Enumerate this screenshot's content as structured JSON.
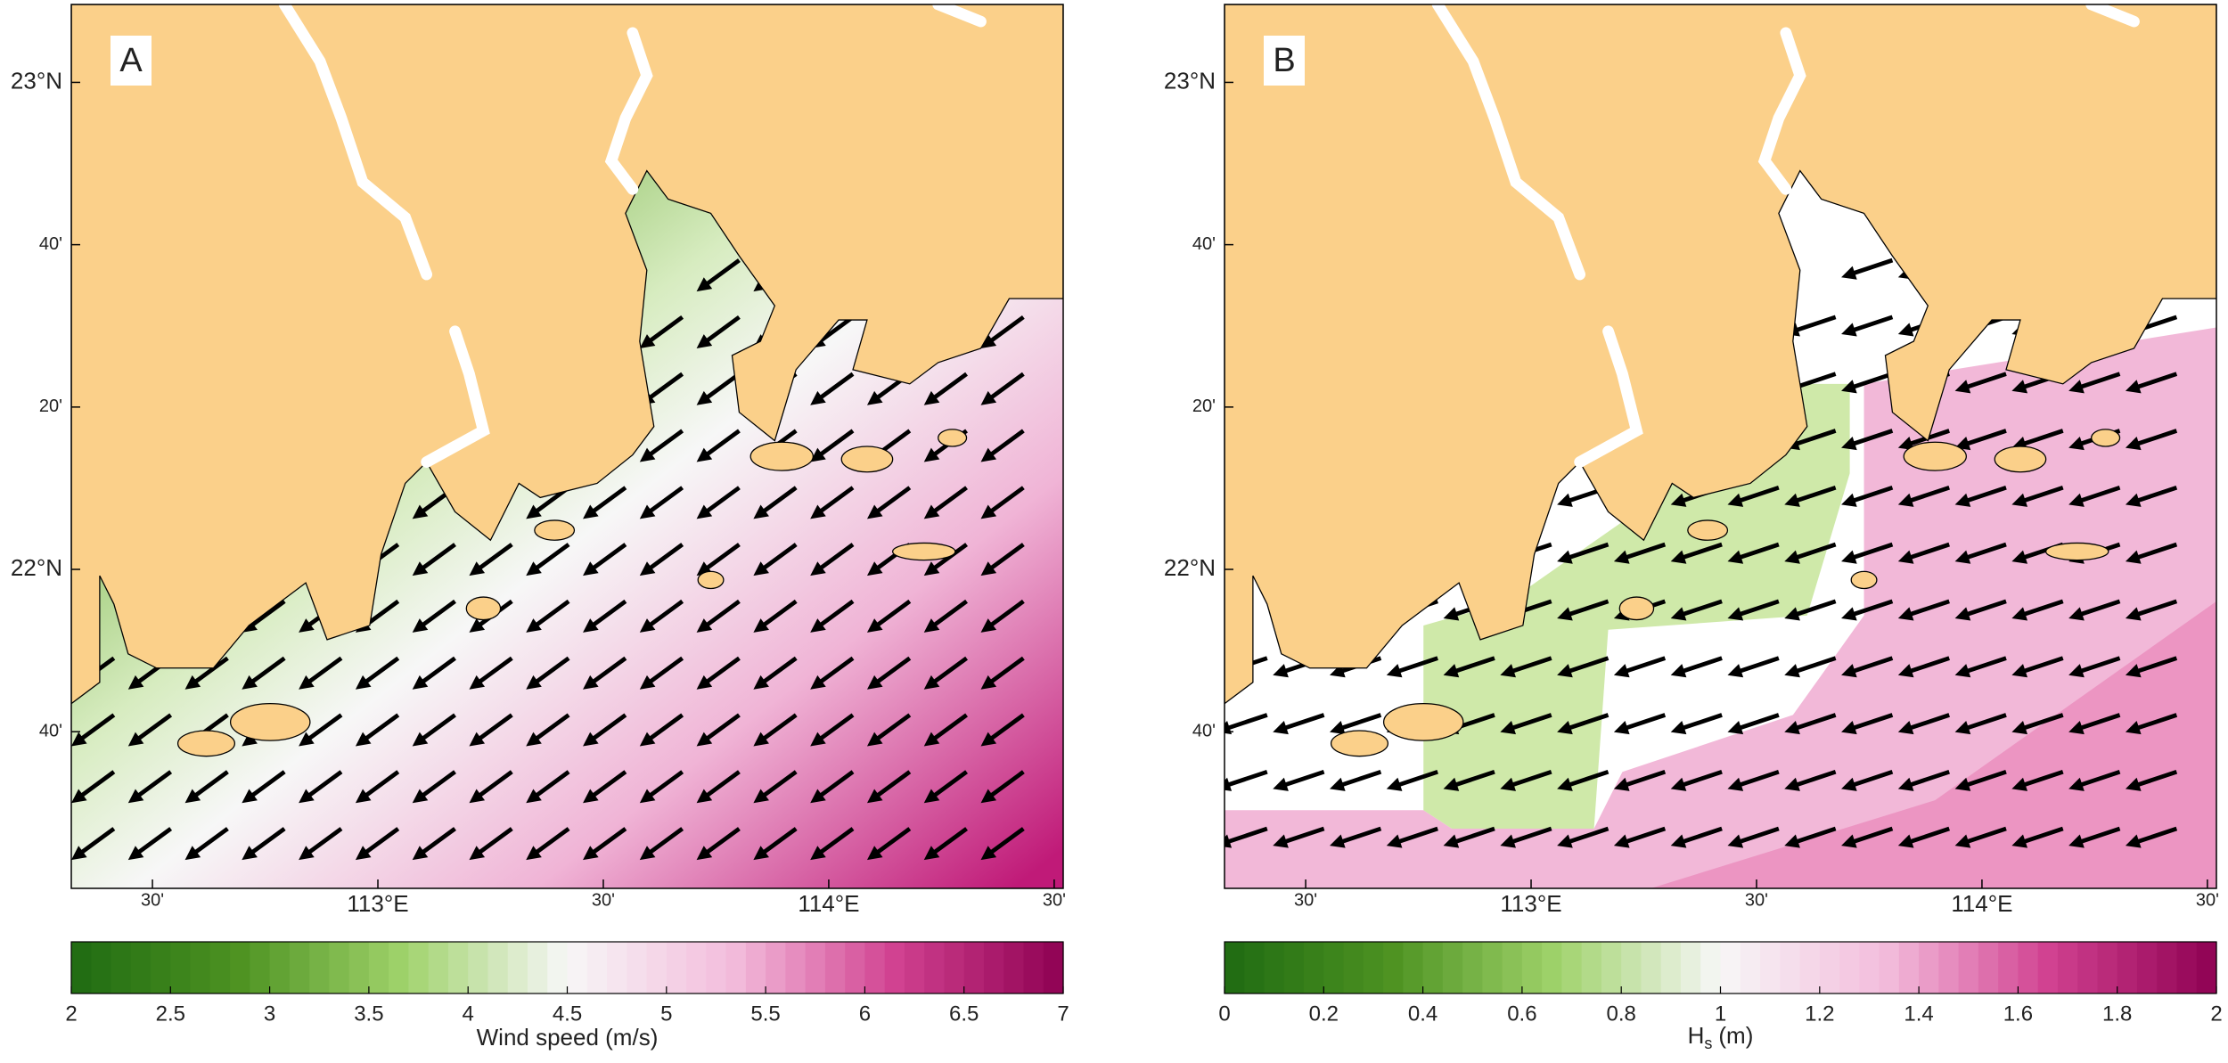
{
  "panels": [
    {
      "label": "A",
      "lat_lim": [
        21.345,
        23.16
      ],
      "lon_lim": [
        112.32,
        114.52
      ],
      "lat_ticks": [
        {
          "value": 23,
          "label": "23°N"
        },
        {
          "value": 22.6667,
          "label": "40'"
        },
        {
          "value": 22.3333,
          "label": "20'"
        },
        {
          "value": 22,
          "label": "22°N"
        },
        {
          "value": 21.6667,
          "label": "40'"
        }
      ],
      "lon_ticks": [
        {
          "value": 112.5,
          "label": "30'"
        },
        {
          "value": 113,
          "label": "113°E"
        },
        {
          "value": 113.5,
          "label": "30'"
        },
        {
          "value": 114,
          "label": "114°E"
        },
        {
          "value": 114.5,
          "label": "30'"
        }
      ],
      "colorbar": {
        "label": "Wind speed (m/s)",
        "lim": [
          2,
          7
        ],
        "ticks": [
          2,
          2.5,
          3,
          3.5,
          4,
          4.5,
          5,
          5.5,
          6,
          6.5,
          7
        ]
      },
      "colormap": [
        "#1f6b12",
        "#4d9221",
        "#9fd26a",
        "#f7f7f7",
        "#f3bcdc",
        "#d0408f",
        "#8e0152"
      ]
    },
    {
      "label": "B",
      "lat_lim": [
        21.345,
        23.16
      ],
      "lon_lim": [
        112.32,
        114.52
      ],
      "lat_ticks": [
        {
          "value": 23,
          "label": "23°N"
        },
        {
          "value": 22.6667,
          "label": "40'"
        },
        {
          "value": 22.3333,
          "label": "20'"
        },
        {
          "value": 22,
          "label": "22°N"
        },
        {
          "value": 21.6667,
          "label": "40'"
        }
      ],
      "lon_ticks": [
        {
          "value": 112.5,
          "label": "30'"
        },
        {
          "value": 113,
          "label": "113°E"
        },
        {
          "value": 113.5,
          "label": "30'"
        },
        {
          "value": 114,
          "label": "114°E"
        },
        {
          "value": 114.5,
          "label": "30'"
        }
      ],
      "colorbar": {
        "label": {
          "symbol": "H",
          "subscript": "s",
          "unit": "(m)"
        },
        "lim": [
          0,
          2
        ],
        "ticks": [
          0,
          0.2,
          0.4,
          0.6,
          0.8,
          1,
          1.2,
          1.4,
          1.6,
          1.8,
          2
        ]
      },
      "colormap": [
        "#1f6b12",
        "#4d9221",
        "#9fd26a",
        "#f7f7f7",
        "#f3bcdc",
        "#d0408f",
        "#8e0152"
      ]
    }
  ]
}
